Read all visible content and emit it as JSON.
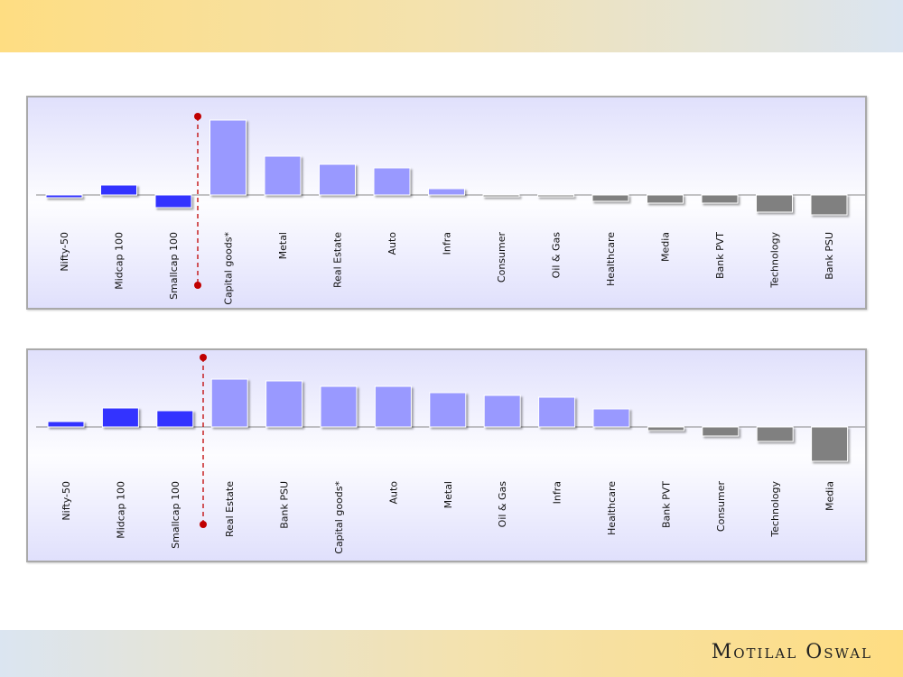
{
  "brand": {
    "logo_text": "Motilal Oswal"
  },
  "colors": {
    "index": "#3333ff",
    "positive": "#9999ff",
    "negative": "#808080",
    "divider": "#c00000"
  },
  "chart_data": [
    {
      "type": "bar",
      "title": "",
      "note": "relative values (no axis shown)",
      "index_count": 3,
      "categories": [
        "Nifty-50",
        "Midcap 100",
        "Smallcap 100",
        "Capital goods*",
        "Metal",
        "Real Estate",
        "Auto",
        "Infra",
        "Consumer",
        "Oil & Gas",
        "Healthcare",
        "Media",
        "Bank PVT",
        "Technology",
        "Bank PSU"
      ],
      "values": [
        -3,
        11,
        -14,
        83,
        43,
        34,
        30,
        7,
        -2,
        -2,
        -7,
        -9,
        -9,
        -19,
        -22
      ]
    },
    {
      "type": "bar",
      "title": "",
      "note": "relative values (no axis shown)",
      "index_count": 3,
      "categories": [
        "Nifty-50",
        "Midcap 100",
        "Smallcap 100",
        "Real Estate",
        "Bank PSU",
        "Capital goods*",
        "Auto",
        "Metal",
        "Oil & Gas",
        "Infra",
        "Healthcare",
        "Bank PVT",
        "Consumer",
        "Technology",
        "Media"
      ],
      "values": [
        6,
        21,
        18,
        53,
        51,
        45,
        45,
        38,
        35,
        33,
        20,
        -4,
        -10,
        -16,
        -38
      ]
    }
  ]
}
